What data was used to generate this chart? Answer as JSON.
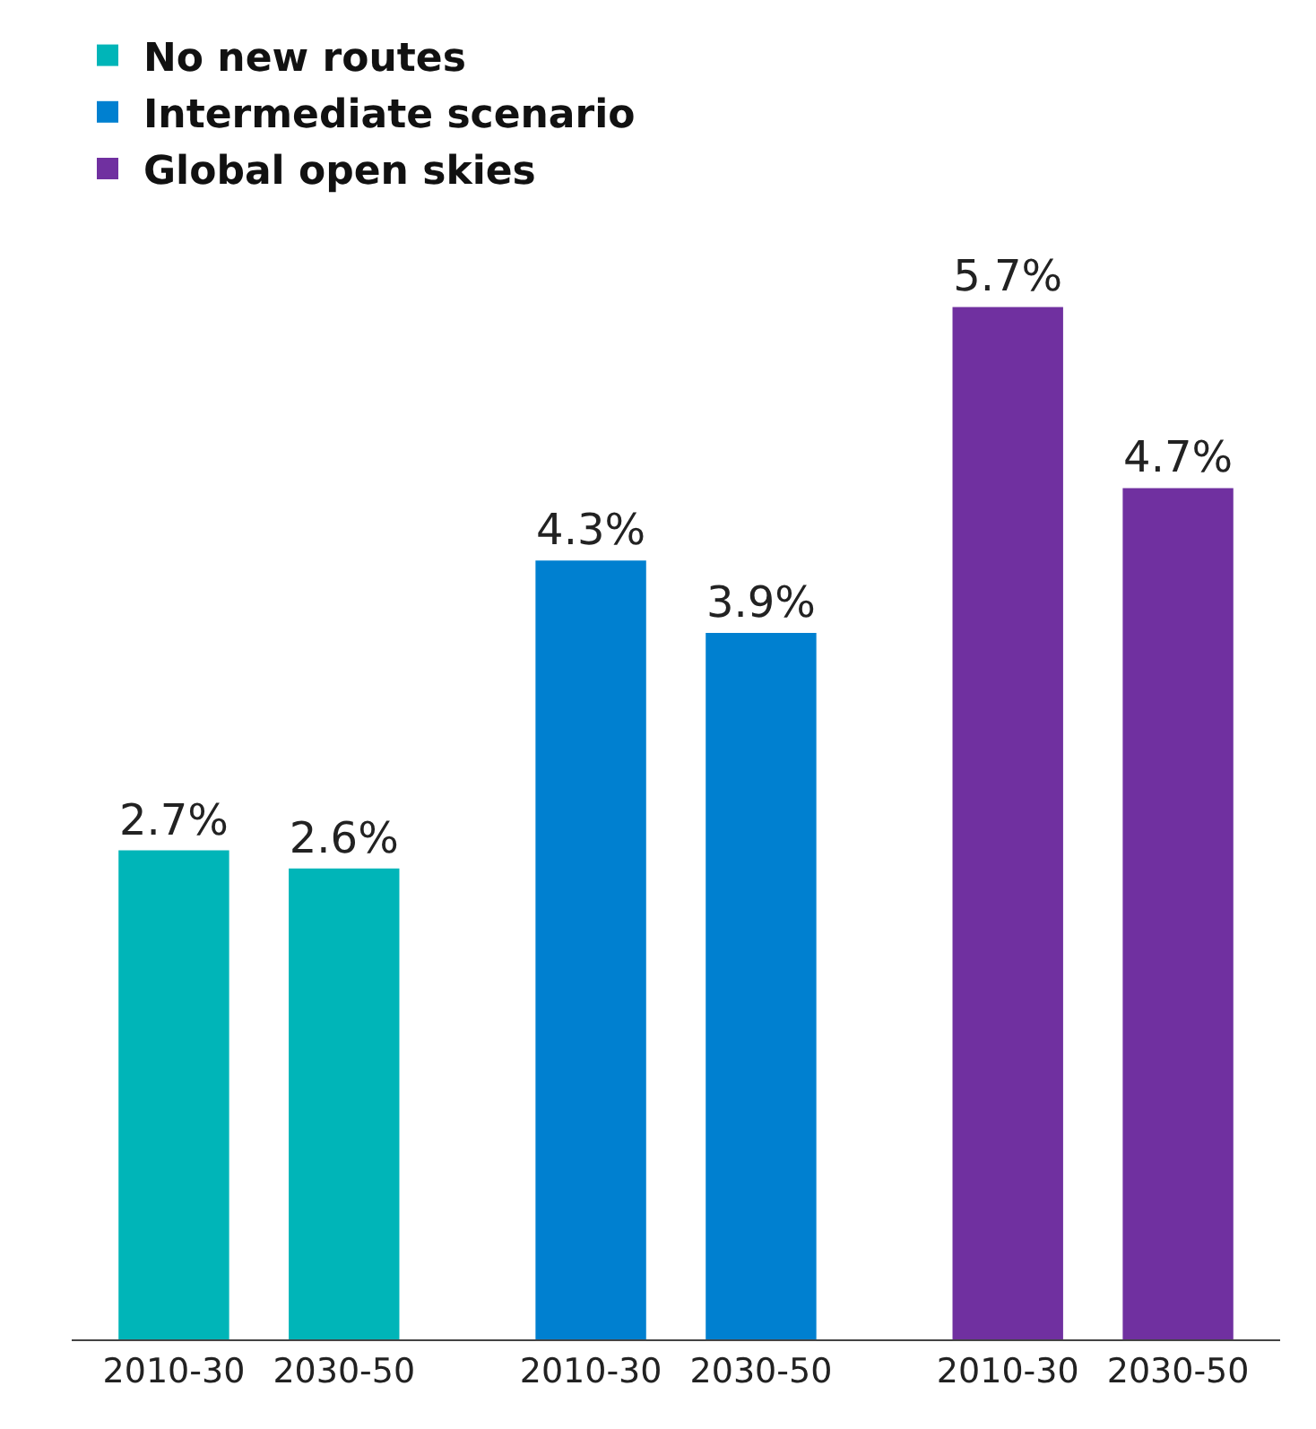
{
  "chart_data": {
    "type": "bar",
    "categories": [
      "2010-30",
      "2030-50",
      "2010-30",
      "2030-50",
      "2010-30",
      "2030-50"
    ],
    "series": [
      {
        "name": "No new routes",
        "color": "#00b5b8",
        "values": [
          2.7,
          2.6,
          null,
          null,
          null,
          null
        ],
        "value_labels": [
          "2.7%",
          "2.6%",
          null,
          null,
          null,
          null
        ]
      },
      {
        "name": "Intermediate scenario",
        "color": "#0080d0",
        "values": [
          null,
          null,
          4.3,
          3.9,
          null,
          null
        ],
        "value_labels": [
          null,
          null,
          "4.3%",
          "3.9%",
          null,
          null
        ]
      },
      {
        "name": "Global open skies",
        "color": "#7030a0",
        "values": [
          null,
          null,
          null,
          null,
          5.7,
          4.7
        ],
        "value_labels": [
          null,
          null,
          null,
          null,
          "5.7%",
          "4.7%"
        ]
      }
    ],
    "legend": "top left"
  }
}
